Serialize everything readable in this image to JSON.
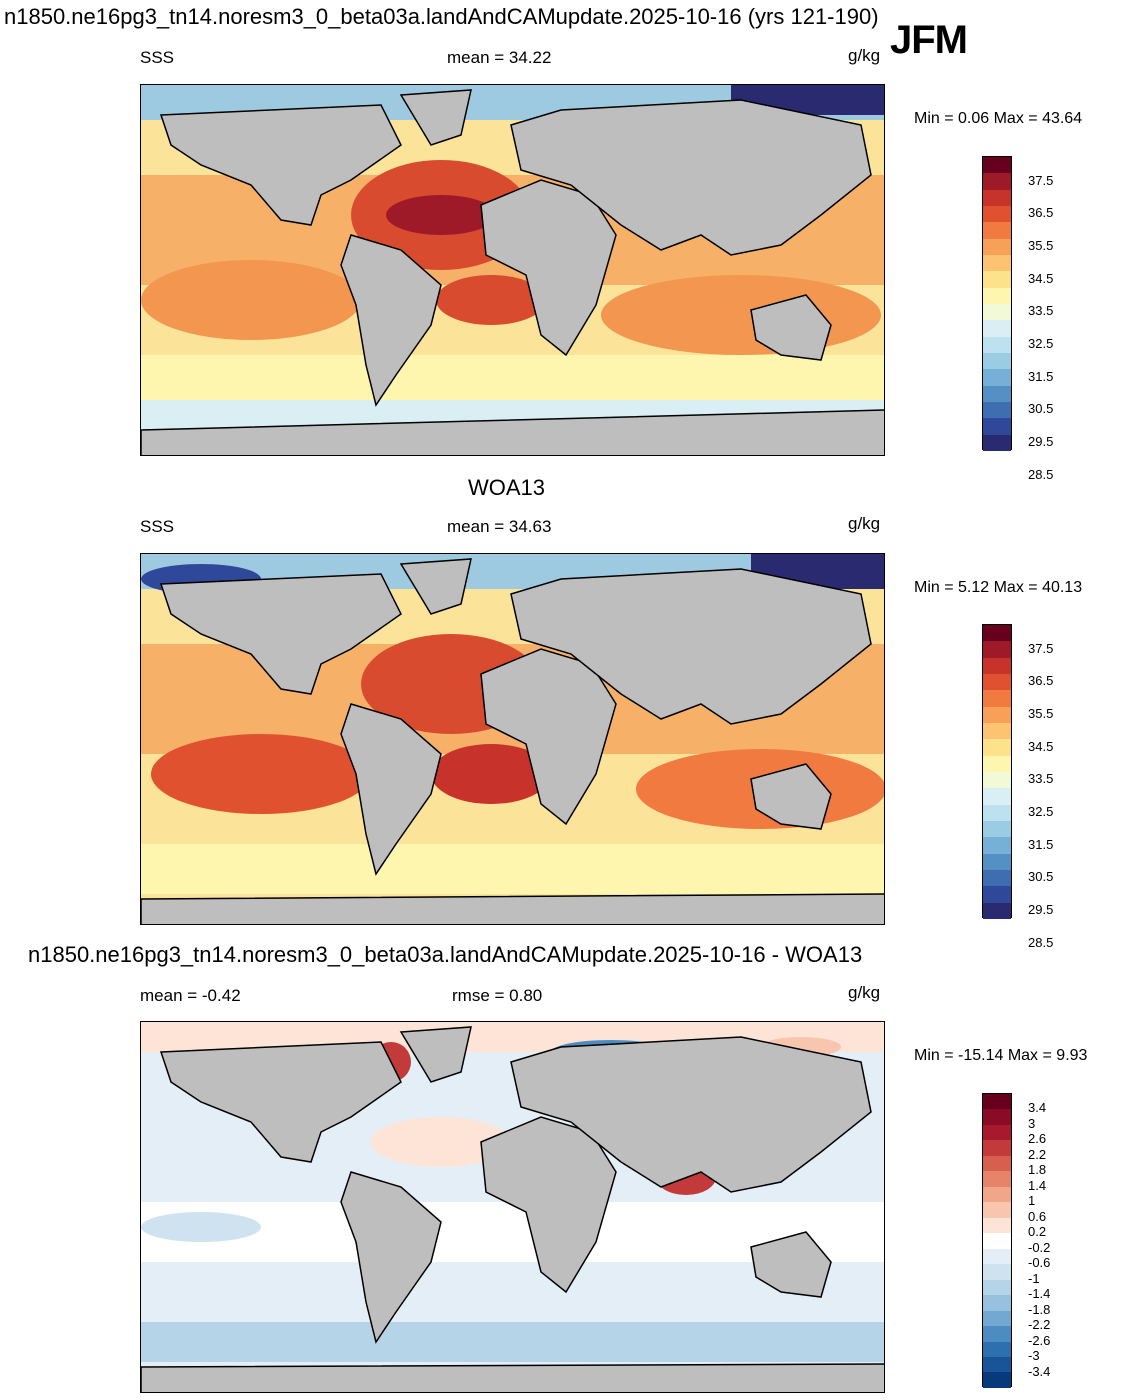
{
  "header": {
    "title": "n1850.ne16pg3_tn14.noresm3_0_beta03a.landAndCAMupdate.2025-10-16 (yrs 121-190)",
    "season": "JFM"
  },
  "panels": [
    {
      "id": "model",
      "subtitle_left": "SSS",
      "mean_text": "mean =  34.22",
      "units": "g/kg",
      "minmax": "Min =   0.06 Max =  43.64"
    },
    {
      "id": "obs",
      "title": "WOA13",
      "subtitle_left": "SSS",
      "mean_text": "mean =  34.63",
      "units": "g/kg",
      "minmax": "Min =   5.12 Max =  40.13"
    },
    {
      "id": "diff",
      "title": "n1850.ne16pg3_tn14.noresm3_0_beta03a.landAndCAMupdate.2025-10-16 - WOA13",
      "mean_text": "mean =  -0.42",
      "rmse_text": "rmse =   0.80",
      "units": "g/kg",
      "minmax": "Min = -15.14 Max =   9.93"
    }
  ],
  "colorbars": {
    "sss": {
      "labels": [
        "37.5",
        "36.5",
        "35.5",
        "34.5",
        "33.5",
        "32.5",
        "31.5",
        "30.5",
        "29.5",
        "28.5"
      ],
      "colors": [
        "#67001f",
        "#9e1a28",
        "#c7322b",
        "#e0522f",
        "#f07a40",
        "#f7a058",
        "#fcc472",
        "#fde28c",
        "#fef5ae",
        "#f1f9d7",
        "#d9eff4",
        "#bde1ee",
        "#9acce3",
        "#76b0d6",
        "#5590c4",
        "#3f6eb0",
        "#30489a",
        "#2a2a70"
      ]
    },
    "diff": {
      "labels": [
        "3.4",
        "3",
        "2.6",
        "2.2",
        "1.8",
        "1.4",
        "1",
        "0.6",
        "0.2",
        "-0.2",
        "-0.6",
        "-1",
        "-1.4",
        "-1.8",
        "-2.2",
        "-2.6",
        "-3",
        "-3.4"
      ],
      "colors": [
        "#67001f",
        "#8a0b24",
        "#a8192d",
        "#c23a3a",
        "#d6604d",
        "#e6846a",
        "#f1a689",
        "#f8c6ae",
        "#fde4d6",
        "#ffffff",
        "#e4eef6",
        "#cfe2f0",
        "#b5d4e8",
        "#96c1df",
        "#72a8d1",
        "#4d8cc0",
        "#2e6fae",
        "#1a5498",
        "#073a7a"
      ]
    }
  },
  "map_colors": {
    "land": "#bebebe",
    "coast": "#000000"
  }
}
